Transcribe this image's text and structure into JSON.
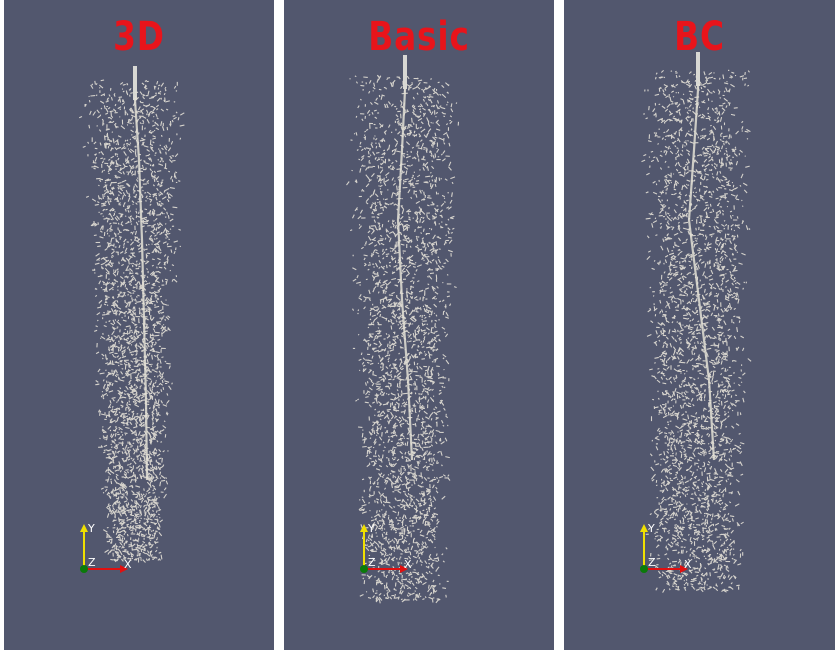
{
  "viewports": [
    {
      "title": "3D"
    },
    {
      "title": "Basic"
    },
    {
      "title": "BC"
    }
  ],
  "axes": {
    "y": "Y",
    "z": "Z",
    "x": "X"
  },
  "colors": {
    "background": "#52576e",
    "title": "#e8141b",
    "particles": "#e3e0d6",
    "axis_y": "#f0e000",
    "axis_x": "#e01010",
    "axis_origin": "#0a7a0a"
  }
}
